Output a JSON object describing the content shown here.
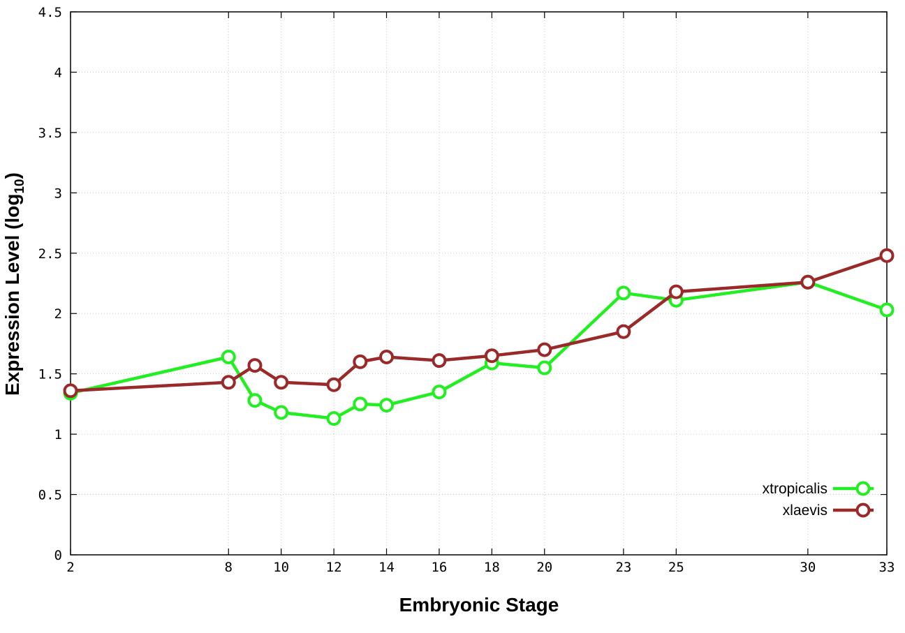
{
  "chart_data": {
    "type": "line",
    "title": "",
    "xlabel": "Embryonic Stage",
    "ylabel": "Expression Level (log",
    "ylabel_subscript": "10",
    "ylabel_suffix": ")",
    "xlim": [
      2,
      33
    ],
    "ylim": [
      0,
      4.5
    ],
    "xticks": [
      2,
      8,
      10,
      12,
      14,
      16,
      18,
      20,
      23,
      25,
      30,
      33
    ],
    "xtick_labels": [
      "2",
      "8",
      "10",
      "12",
      "14",
      "16",
      "18",
      "20",
      "23",
      "25",
      "30",
      "33"
    ],
    "yticks": [
      0,
      0.5,
      1,
      1.5,
      2,
      2.5,
      3,
      3.5,
      4,
      4.5
    ],
    "ytick_labels": [
      "0",
      "0.5",
      "1",
      "1.5",
      "2",
      "2.5",
      "3",
      "3.5",
      "4",
      "4.5"
    ],
    "grid": true,
    "legend_position": "bottom-right",
    "series": [
      {
        "name": "xtropicalis",
        "color": "#22ee22",
        "x": [
          2,
          8,
          9,
          10,
          12,
          13,
          14,
          16,
          18,
          20,
          23,
          25,
          30,
          33
        ],
        "y": [
          1.34,
          1.64,
          1.28,
          1.18,
          1.13,
          1.25,
          1.24,
          1.35,
          1.59,
          1.55,
          2.17,
          2.11,
          2.26,
          2.03
        ]
      },
      {
        "name": "xlaevis",
        "color": "#9a2a2a",
        "x": [
          2,
          8,
          9,
          10,
          12,
          13,
          14,
          16,
          18,
          20,
          23,
          25,
          30,
          33
        ],
        "y": [
          1.36,
          1.43,
          1.57,
          1.43,
          1.41,
          1.6,
          1.64,
          1.61,
          1.65,
          1.7,
          1.85,
          2.18,
          2.26,
          2.48
        ]
      }
    ]
  }
}
